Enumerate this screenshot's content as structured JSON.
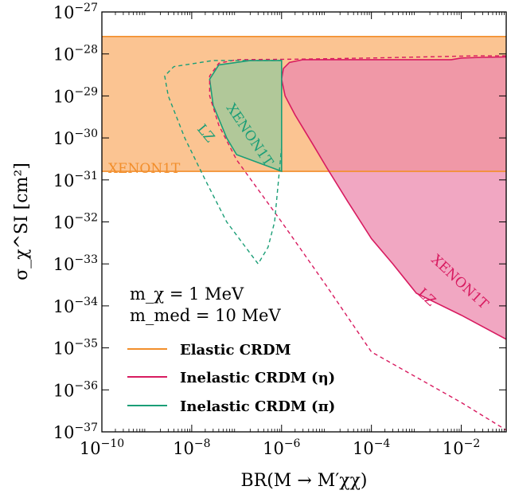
{
  "chart_data": {
    "type": "area",
    "xlabel": "BR(M → M′χχ)",
    "ylabel": "σ_χ^SI [cm²]",
    "x_scale": "log",
    "y_scale": "log",
    "xlim": [
      1e-10,
      0.1
    ],
    "ylim": [
      1e-37,
      1e-27
    ],
    "grid": false,
    "legend_placement": "lower-left",
    "x_ticks": [
      {
        "value": 1e-10,
        "base": "10",
        "exp": "−10"
      },
      {
        "value": 1e-08,
        "base": "10",
        "exp": "−8"
      },
      {
        "value": 1e-06,
        "base": "10",
        "exp": "−6"
      },
      {
        "value": 0.0001,
        "base": "10",
        "exp": "−4"
      },
      {
        "value": 0.01,
        "base": "10",
        "exp": "−2"
      }
    ],
    "y_ticks": [
      {
        "value": 1e-37,
        "base": "10",
        "exp": "−37"
      },
      {
        "value": 1e-36,
        "base": "10",
        "exp": "−36"
      },
      {
        "value": 1e-35,
        "base": "10",
        "exp": "−35"
      },
      {
        "value": 1e-34,
        "base": "10",
        "exp": "−34"
      },
      {
        "value": 1e-33,
        "base": "10",
        "exp": "−33"
      },
      {
        "value": 1e-32,
        "base": "10",
        "exp": "−32"
      },
      {
        "value": 1e-31,
        "base": "10",
        "exp": "−31"
      },
      {
        "value": 1e-30,
        "base": "10",
        "exp": "−30"
      },
      {
        "value": 1e-29,
        "base": "10",
        "exp": "−29"
      },
      {
        "value": 1e-28,
        "base": "10",
        "exp": "−28"
      },
      {
        "value": 1e-27,
        "base": "10",
        "exp": "−27"
      }
    ],
    "annotations": {
      "mass_chi": "m_χ = 1 MeV",
      "mass_med": "m_med = 10 MeV",
      "elastic_label": "XENON1T",
      "eta_xenon_label": "XENON1T",
      "eta_lz_label": "LZ",
      "pi_xenon_label": "XENON1T",
      "pi_lz_label": "LZ"
    },
    "legend": [
      {
        "label": "Elastic CRDM",
        "color": "#f28e2b"
      },
      {
        "label": "Inelastic CRDM (η)",
        "color": "#d81b60"
      },
      {
        "label": "Inelastic CRDM (π)",
        "color": "#1b9e77"
      }
    ],
    "series": [
      {
        "name": "Elastic CRDM",
        "experiment": "XENON1T",
        "style": "filled",
        "color": "#f28e2b",
        "fill": "#fbc492",
        "y_range": [
          1.6e-31,
          2.6e-28
        ]
      },
      {
        "name": "Inelastic CRDM (η)",
        "experiment": "XENON1T",
        "style": "filled",
        "color": "#d81b60",
        "fill": "#ec8aae",
        "points": [
          [
            0.1,
            8.5e-29
          ],
          [
            0.03,
            8.3e-29
          ],
          [
            0.01,
            8e-29
          ],
          [
            0.006,
            7.3e-29
          ],
          [
            0.0001,
            7.3e-29
          ],
          [
            3e-06,
            7.3e-29
          ],
          [
            1.5e-06,
            6.3e-29
          ],
          [
            1.1e-06,
            4.5e-29
          ],
          [
            1e-06,
            2.5e-29
          ],
          [
            1.2e-06,
            1e-29
          ],
          [
            2e-06,
            3.5e-30
          ],
          [
            5e-06,
            7e-31
          ],
          [
            1e-05,
            2e-31
          ],
          [
            3e-05,
            3e-32
          ],
          [
            0.0001,
            4e-33
          ],
          [
            0.0003,
            1e-33
          ],
          [
            0.001,
            2e-34
          ],
          [
            0.01,
            6e-35
          ],
          [
            0.1,
            1.6e-35
          ]
        ]
      },
      {
        "name": "Inelastic CRDM (η)",
        "experiment": "LZ",
        "style": "dashed",
        "color": "#d81b60",
        "points": [
          [
            0.1,
            9e-29
          ],
          [
            0.02,
            9e-29
          ],
          [
            0.0001,
            8e-29
          ],
          [
            2e-06,
            7.5e-29
          ],
          [
            1e-07,
            7.3e-29
          ],
          [
            4e-08,
            6e-29
          ],
          [
            2.5e-08,
            3e-29
          ],
          [
            2.5e-08,
            1e-29
          ],
          [
            4e-08,
            2e-30
          ],
          [
            1e-07,
            3e-31
          ],
          [
            1e-06,
            1e-32
          ],
          [
            1e-05,
            3e-34
          ],
          [
            0.0001,
            8e-36
          ],
          [
            0.001,
            2e-36
          ],
          [
            0.01,
            5e-37
          ],
          [
            0.1,
            1.1e-37
          ]
        ]
      },
      {
        "name": "Inelastic CRDM (π)",
        "experiment": "XENON1T",
        "style": "filled",
        "color": "#1b9e77",
        "fill": "#9fc99b",
        "points": [
          [
            1e-06,
            7e-29
          ],
          [
            2e-07,
            7e-29
          ],
          [
            4e-08,
            5.5e-29
          ],
          [
            2.5e-08,
            2.5e-29
          ],
          [
            3e-08,
            6e-30
          ],
          [
            6e-08,
            1e-30
          ],
          [
            1e-07,
            4e-31
          ],
          [
            1e-06,
            1.6e-31
          ]
        ]
      },
      {
        "name": "Inelastic CRDM (π)",
        "experiment": "LZ",
        "style": "dashed",
        "color": "#1b9e77",
        "points": [
          [
            1e-06,
            6e-31
          ],
          [
            1e-06,
            7e-29
          ],
          [
            3e-08,
            7e-29
          ],
          [
            4e-09,
            5e-29
          ],
          [
            2.5e-09,
            3e-29
          ],
          [
            3e-09,
            1e-29
          ],
          [
            7e-09,
            1e-30
          ],
          [
            2e-08,
            1e-31
          ],
          [
            6e-08,
            1e-32
          ],
          [
            3e-07,
            1e-33
          ],
          [
            5e-07,
            2.5e-33
          ],
          [
            7e-07,
            1e-32
          ],
          [
            1e-06,
            6e-31
          ]
        ]
      }
    ]
  }
}
